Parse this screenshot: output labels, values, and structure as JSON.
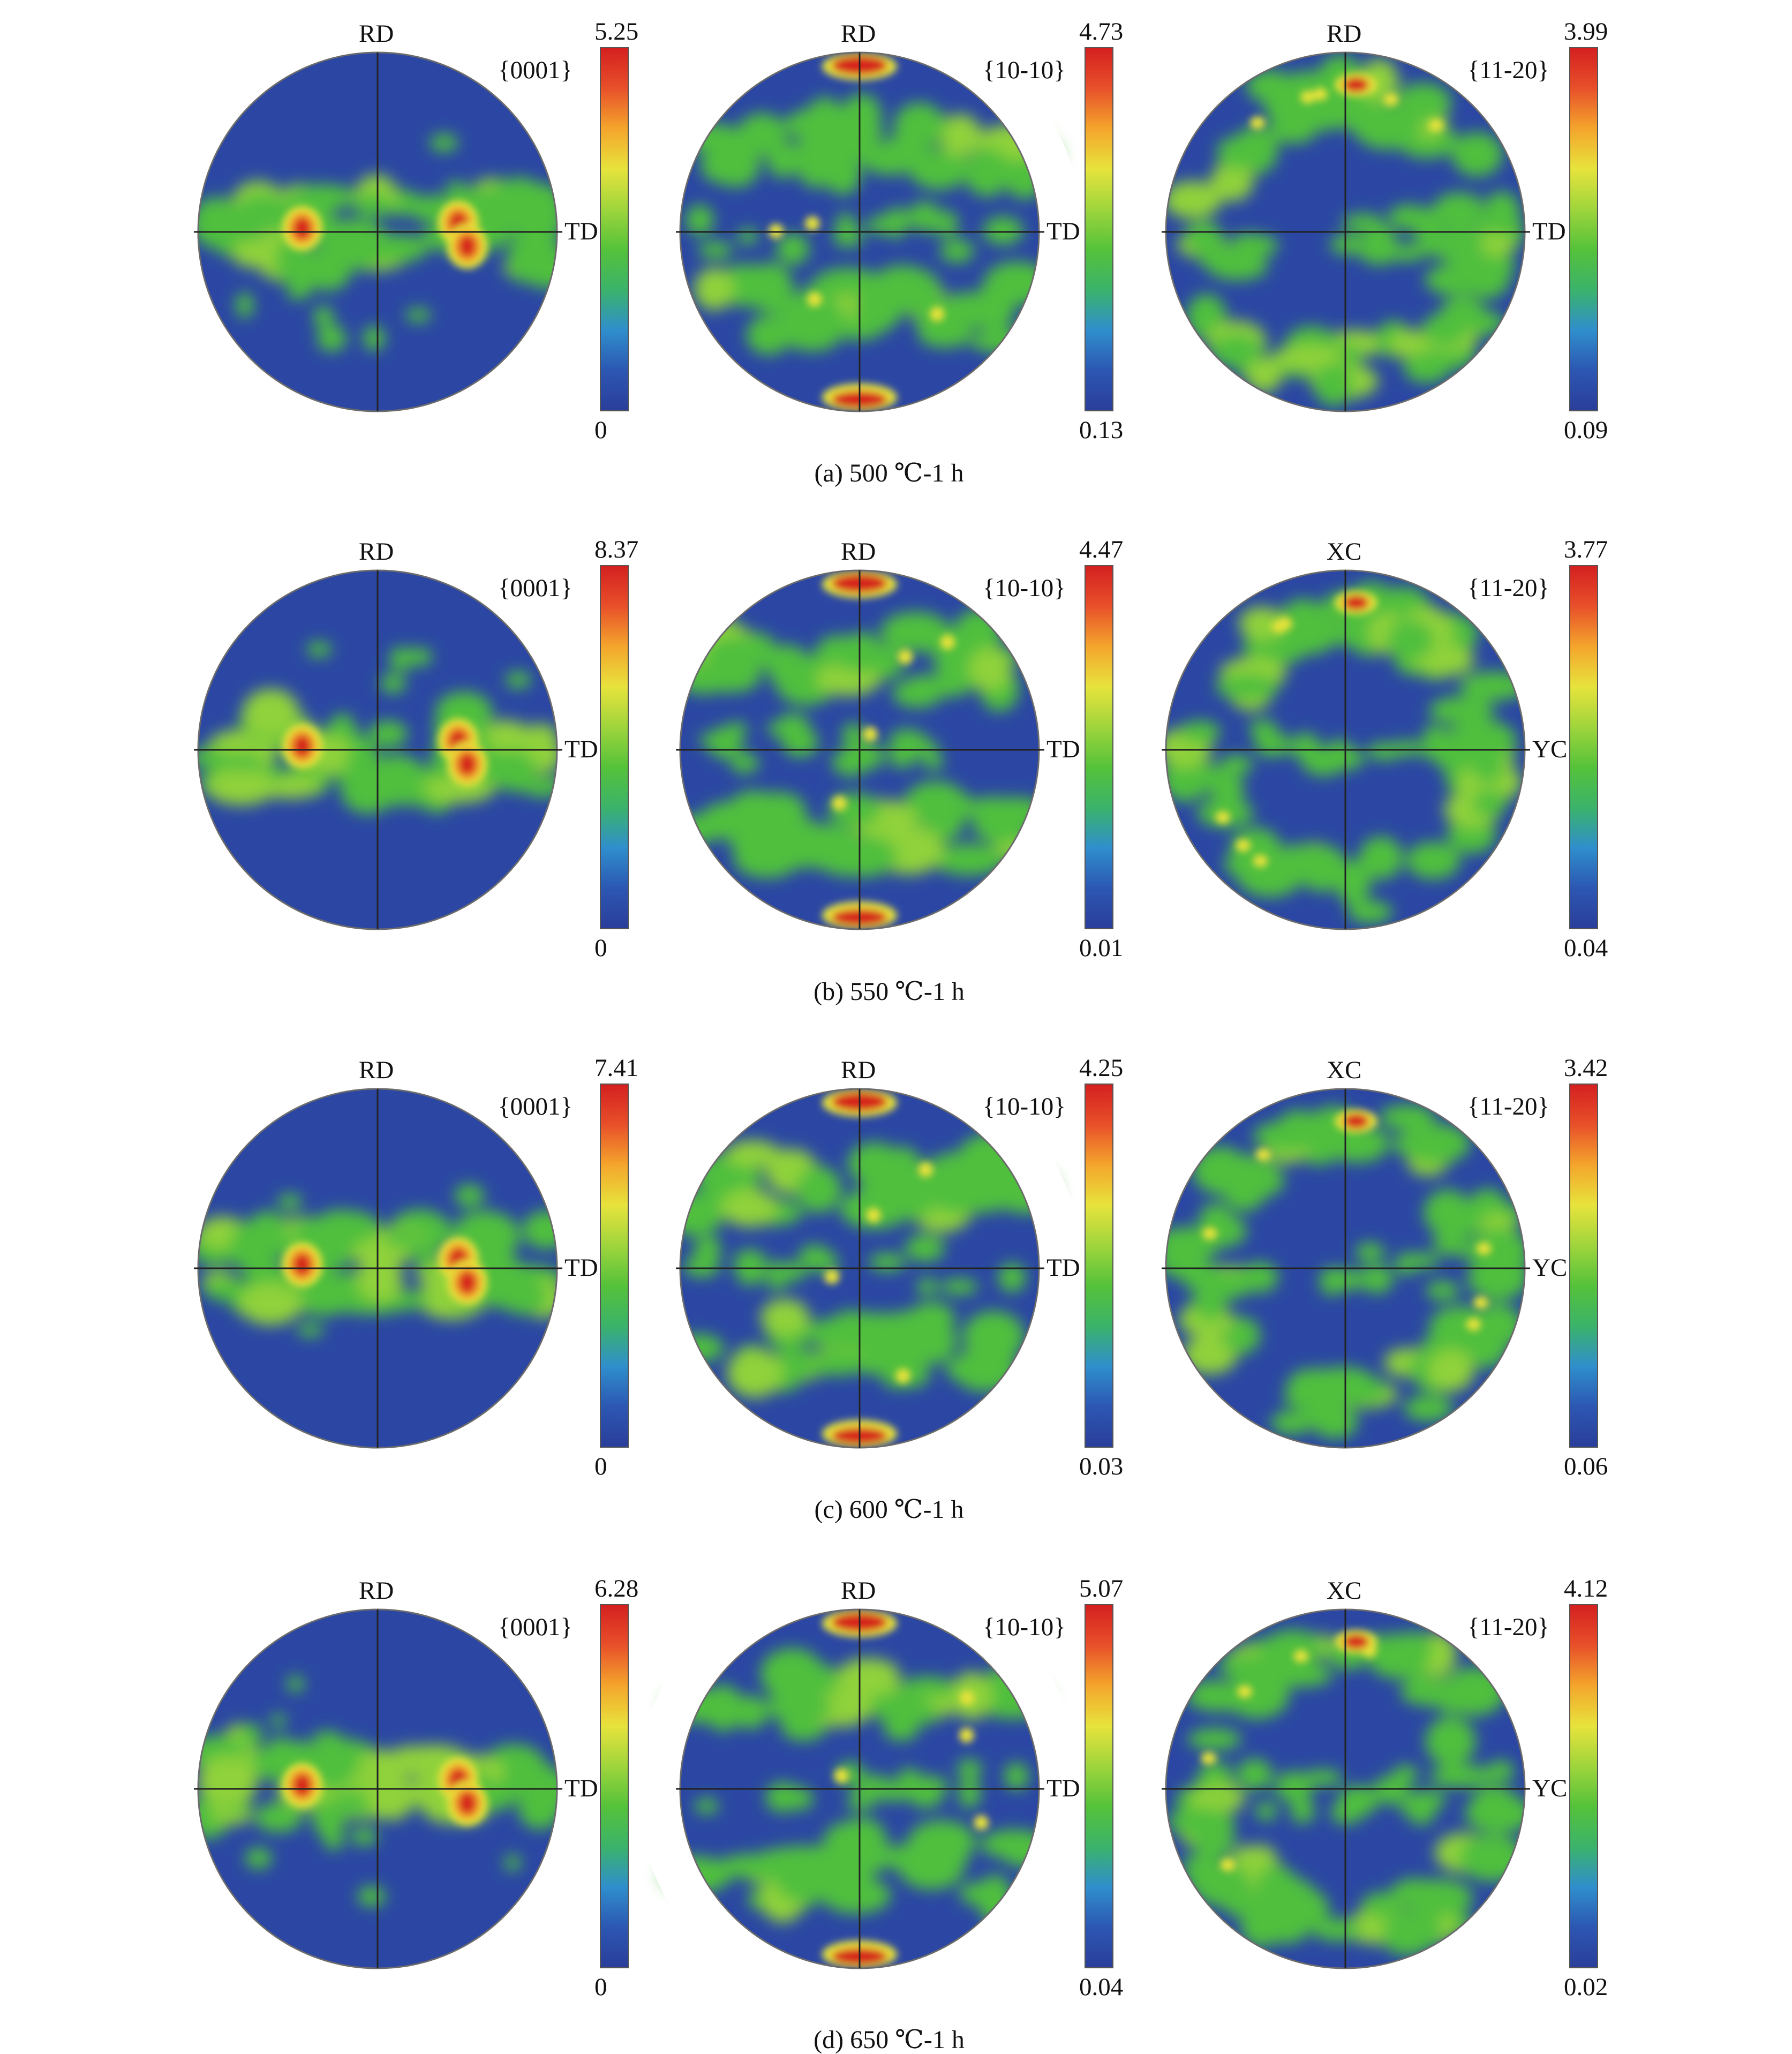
{
  "figure": {
    "rows": [
      {
        "caption": "(a) 500 ℃-1 h",
        "plots": [
          {
            "plane": "{0001}",
            "top_axis": "RD",
            "side_axis": "TD",
            "scale_max": "5.25",
            "scale_min": "0",
            "pattern": "basal_spots"
          },
          {
            "plane": "{10-10}",
            "top_axis": "RD",
            "side_axis": "TD",
            "scale_max": "4.73",
            "scale_min": "0.13",
            "pattern": "prism_band"
          },
          {
            "plane": "{11-20}",
            "top_axis": "RD",
            "side_axis": "TD",
            "scale_max": "3.99",
            "scale_min": "0.09",
            "pattern": "ring"
          }
        ]
      },
      {
        "caption": "(b) 550 ℃-1 h",
        "plots": [
          {
            "plane": "{0001}",
            "top_axis": "RD",
            "side_axis": "TD",
            "scale_max": "8.37",
            "scale_min": "0",
            "pattern": "basal_spots"
          },
          {
            "plane": "{10-10}",
            "top_axis": "RD",
            "side_axis": "TD",
            "scale_max": "4.47",
            "scale_min": "0.01",
            "pattern": "prism_band"
          },
          {
            "plane": "{11-20}",
            "top_axis": "XC",
            "side_axis": "YC",
            "scale_max": "3.77",
            "scale_min": "0.04",
            "pattern": "ring"
          }
        ]
      },
      {
        "caption": "(c) 600 ℃-1 h",
        "plots": [
          {
            "plane": "{0001}",
            "top_axis": "RD",
            "side_axis": "TD",
            "scale_max": "7.41",
            "scale_min": "0",
            "pattern": "basal_spots"
          },
          {
            "plane": "{10-10}",
            "top_axis": "RD",
            "side_axis": "TD",
            "scale_max": "4.25",
            "scale_min": "0.03",
            "pattern": "prism_band"
          },
          {
            "plane": "{11-20}",
            "top_axis": "XC",
            "side_axis": "YC",
            "scale_max": "3.42",
            "scale_min": "0.06",
            "pattern": "ring"
          }
        ]
      },
      {
        "caption": "(d) 650 ℃-1 h",
        "plots": [
          {
            "plane": "{0001}",
            "top_axis": "RD",
            "side_axis": "TD",
            "scale_max": "6.28",
            "scale_min": "0",
            "pattern": "basal_spots"
          },
          {
            "plane": "{10-10}",
            "top_axis": "RD",
            "side_axis": "TD",
            "scale_max": "5.07",
            "scale_min": "0.04",
            "pattern": "prism_band"
          },
          {
            "plane": "{11-20}",
            "top_axis": "XC",
            "side_axis": "YC",
            "scale_max": "4.12",
            "scale_min": "0.02",
            "pattern": "ring"
          }
        ]
      }
    ],
    "colormap": [
      "#2a3e9a",
      "#2c57b3",
      "#2f8fcc",
      "#3bb36a",
      "#55c23a",
      "#9fd53c",
      "#e7e33c",
      "#f4a52c",
      "#e8502a",
      "#d42020"
    ]
  }
}
